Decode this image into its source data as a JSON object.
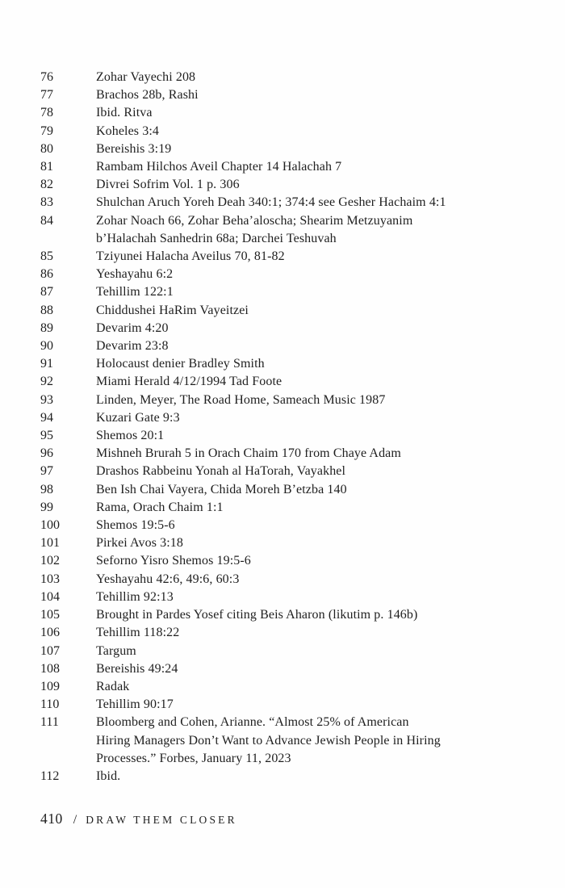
{
  "page": {
    "colors": {
      "background": "#fefefe",
      "text": "#1f1f1f"
    },
    "endnotes": {
      "entries": [
        {
          "num": "76",
          "text": "Zohar Vayechi 208"
        },
        {
          "num": "77",
          "text": "Brachos 28b, Rashi"
        },
        {
          "num": "78",
          "text": "Ibid. Ritva"
        },
        {
          "num": "79",
          "text": "Koheles 3:4"
        },
        {
          "num": "80",
          "text": "Bereishis 3:19"
        },
        {
          "num": "81",
          "text": "Rambam Hilchos Aveil Chapter 14 Halachah 7"
        },
        {
          "num": "82",
          "text": "Divrei Sofrim Vol. 1 p. 306"
        },
        {
          "num": "83",
          "text": "Shulchan Aruch Yoreh Deah 340:1; 374:4 see Gesher Hachaim 4:1"
        },
        {
          "num": "84",
          "text": "Zohar Noach 66, Zohar Beha’aloscha; Shearim Metzuyanim\nb’Halachah Sanhedrin 68a; Darchei Teshuvah"
        },
        {
          "num": "85",
          "text": "Tziyunei Halacha Aveilus 70, 81-82"
        },
        {
          "num": "86",
          "text": "Yeshayahu 6:2"
        },
        {
          "num": "87",
          "text": "Tehillim 122:1"
        },
        {
          "num": "88",
          "text": "Chiddushei HaRim Vayeitzei"
        },
        {
          "num": "89",
          "text": "Devarim 4:20"
        },
        {
          "num": "90",
          "text": "Devarim 23:8"
        },
        {
          "num": "91",
          "text": "Holocaust denier Bradley Smith"
        },
        {
          "num": "92",
          "text": "Miami Herald 4/12/1994 Tad Foote"
        },
        {
          "num": "93",
          "text": "Linden, Meyer, The Road Home, Sameach Music 1987"
        },
        {
          "num": "94",
          "text": "Kuzari Gate 9:3"
        },
        {
          "num": "95",
          "text": "Shemos 20:1"
        },
        {
          "num": "96",
          "text": "Mishneh Brurah 5 in Orach Chaim 170  from Chaye Adam"
        },
        {
          "num": "97",
          "text": "Drashos Rabbeinu Yonah al HaTorah, Vayakhel"
        },
        {
          "num": "98",
          "text": "Ben Ish Chai Vayera, Chida Moreh B’etzba 140"
        },
        {
          "num": "99",
          "text": "Rama, Orach Chaim 1:1"
        },
        {
          "num": "100",
          "text": "Shemos 19:5-6"
        },
        {
          "num": "101",
          "text": "Pirkei Avos 3:18"
        },
        {
          "num": "102",
          "text": "Seforno Yisro Shemos 19:5-6"
        },
        {
          "num": "103",
          "text": "Yeshayahu 42:6, 49:6, 60:3"
        },
        {
          "num": "104",
          "text": "Tehillim 92:13"
        },
        {
          "num": "105",
          "text": "Brought in Pardes Yosef citing Beis Aharon (likutim p. 146b)"
        },
        {
          "num": "106",
          "text": "Tehillim 118:22"
        },
        {
          "num": "107",
          "text": "Targum"
        },
        {
          "num": "108",
          "text": "Bereishis 49:24"
        },
        {
          "num": "109",
          "text": "Radak"
        },
        {
          "num": "110",
          "text": "Tehillim 90:17"
        },
        {
          "num": "111",
          "text": "Bloomberg and Cohen, Arianne. “Almost 25% of American\nHiring Managers Don’t Want to Advance Jewish People in Hiring\nProcesses.” Forbes, January 11, 2023"
        },
        {
          "num": "112",
          "text": "Ibid."
        }
      ]
    },
    "footer": {
      "page_number": "410",
      "separator": "/",
      "book_title": "DRAW THEM CLOSER"
    }
  }
}
